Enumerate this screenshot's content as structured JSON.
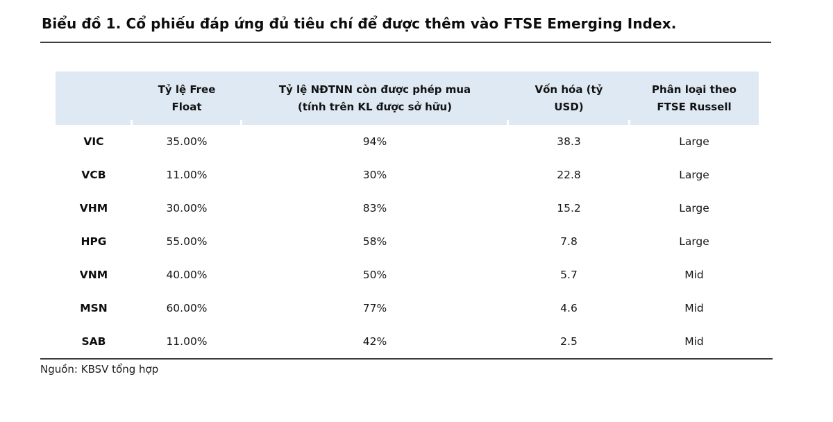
{
  "title": "Biểu đồ 1. Cổ phiếu đáp ứng đủ tiêu chí để được thêm vào FTSE Emerging Index.",
  "source_note": "Nguồn: KBSV tổng hợp",
  "colors": {
    "header_bg": "#dee9f3",
    "rule": "#3d3d3d",
    "text": "#141414"
  },
  "table": {
    "headers": [
      {
        "line1": "",
        "line2": ""
      },
      {
        "line1": "Tỷ lệ Free",
        "line2": "Float"
      },
      {
        "line1": "Tỷ lệ NĐTNN còn được phép mua",
        "line2": "(tính trên KL được sở hữu)"
      },
      {
        "line1": "Vốn hóa (tỷ",
        "line2": "USD)"
      },
      {
        "line1": "Phân loại theo",
        "line2": "FTSE Russell"
      }
    ],
    "rows": [
      {
        "ticker": "VIC",
        "free_float": "35.00%",
        "foreign_room": "94%",
        "market_cap": "38.3",
        "classification": "Large"
      },
      {
        "ticker": "VCB",
        "free_float": "11.00%",
        "foreign_room": "30%",
        "market_cap": "22.8",
        "classification": "Large"
      },
      {
        "ticker": "VHM",
        "free_float": "30.00%",
        "foreign_room": "83%",
        "market_cap": "15.2",
        "classification": "Large"
      },
      {
        "ticker": "HPG",
        "free_float": "55.00%",
        "foreign_room": "58%",
        "market_cap": "7.8",
        "classification": "Large"
      },
      {
        "ticker": "VNM",
        "free_float": "40.00%",
        "foreign_room": "50%",
        "market_cap": "5.7",
        "classification": "Mid"
      },
      {
        "ticker": "MSN",
        "free_float": "60.00%",
        "foreign_room": "77%",
        "market_cap": "4.6",
        "classification": "Mid"
      },
      {
        "ticker": "SAB",
        "free_float": "11.00%",
        "foreign_room": "42%",
        "market_cap": "2.5",
        "classification": "Mid"
      }
    ]
  },
  "chart_data": {
    "type": "table",
    "title": "Biểu đồ 1. Cổ phiếu đáp ứng đủ tiêu chí để được thêm vào FTSE Emerging Index.",
    "columns": [
      "",
      "Tỷ lệ Free Float",
      "Tỷ lệ NĐTNN còn được phép mua (tính trên KL được sở hữu)",
      "Vốn hóa (tỷ USD)",
      "Phân loại theo FTSE Russell"
    ],
    "rows": [
      [
        "VIC",
        "35.00%",
        "94%",
        38.3,
        "Large"
      ],
      [
        "VCB",
        "11.00%",
        "30%",
        22.8,
        "Large"
      ],
      [
        "VHM",
        "30.00%",
        "83%",
        15.2,
        "Large"
      ],
      [
        "HPG",
        "55.00%",
        "58%",
        7.8,
        "Large"
      ],
      [
        "VNM",
        "40.00%",
        "50%",
        5.7,
        "Mid"
      ],
      [
        "MSN",
        "60.00%",
        "77%",
        4.6,
        "Mid"
      ],
      [
        "SAB",
        "11.00%",
        "42%",
        2.5,
        "Mid"
      ]
    ],
    "source": "Nguồn: KBSV tổng hợp"
  }
}
